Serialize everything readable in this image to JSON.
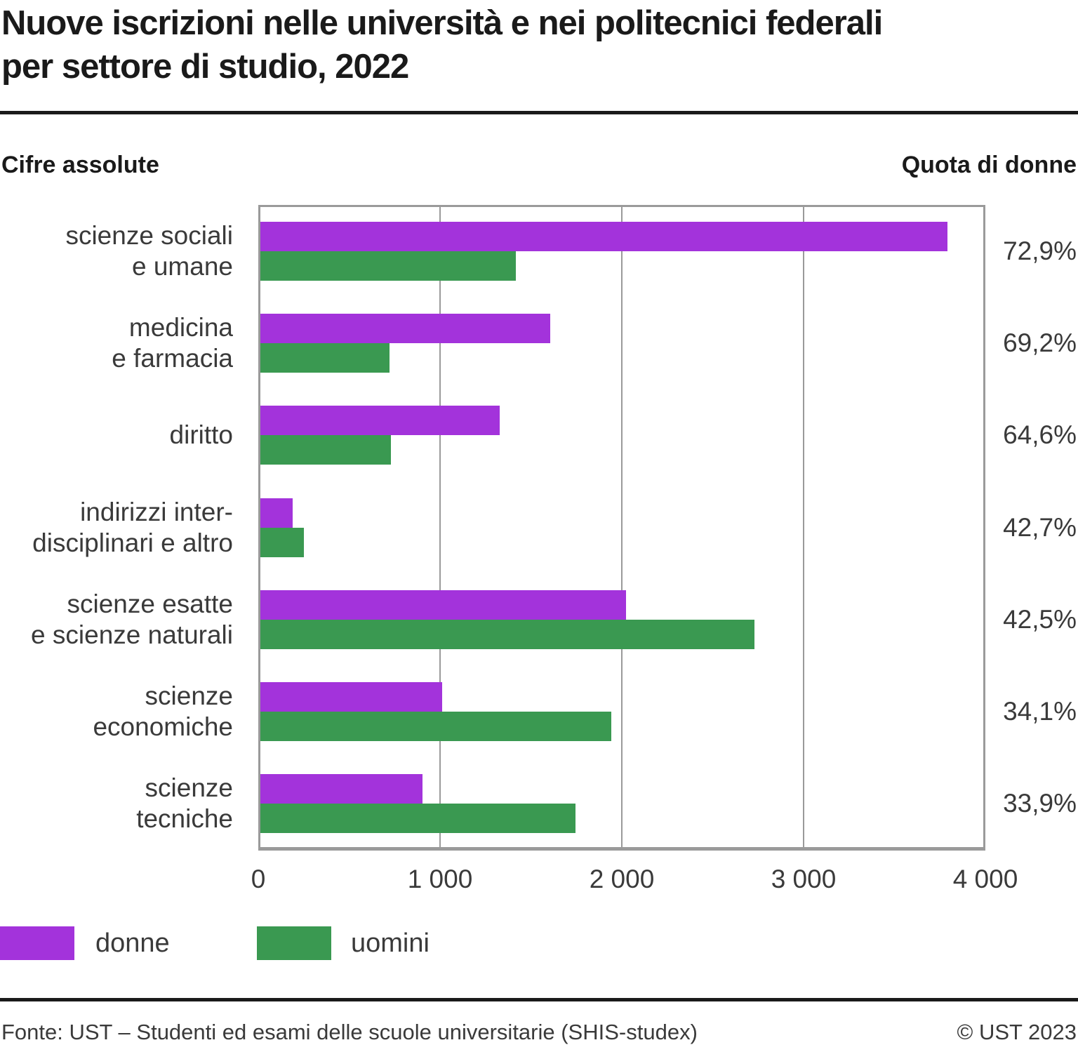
{
  "header": {
    "title_line1": "Nuove iscrizioni nelle università e nei politecnici federali",
    "title_line2": "per settore di studio, 2022",
    "left_subtitle": "Cifre assolute",
    "right_subtitle": "Quota di donne"
  },
  "chart_data": {
    "type": "bar",
    "orientation": "horizontal",
    "title": "Nuove iscrizioni nelle università e nei politecnici federali per settore di studio, 2022",
    "xlabel": "Cifre assolute",
    "xlim": [
      0,
      4000
    ],
    "grid": "vertical",
    "x_ticks": [
      {
        "value": 0,
        "label": "0"
      },
      {
        "value": 1000,
        "label": "1 000"
      },
      {
        "value": 2000,
        "label": "2 000"
      },
      {
        "value": 3000,
        "label": "3 000"
      },
      {
        "value": 4000,
        "label": "4 000"
      }
    ],
    "categories": [
      {
        "label_lines": [
          "scienze sociali",
          "e umane"
        ],
        "quota_di_donne": "72,9%"
      },
      {
        "label_lines": [
          "medicina",
          "e farmacia"
        ],
        "quota_di_donne": "69,2%"
      },
      {
        "label_lines": [
          "diritto"
        ],
        "quota_di_donne": "64,6%"
      },
      {
        "label_lines": [
          "indirizzi inter-",
          "disciplinari e altro"
        ],
        "quota_di_donne": "42,7%"
      },
      {
        "label_lines": [
          "scienze esatte",
          "e scienze naturali"
        ],
        "quota_di_donne": "42,5%"
      },
      {
        "label_lines": [
          "scienze",
          "economiche"
        ],
        "quota_di_donne": "34,1%"
      },
      {
        "label_lines": [
          "scienze",
          "tecniche"
        ],
        "quota_di_donne": "33,9%"
      }
    ],
    "series": [
      {
        "name": "donne",
        "color": "#a333db",
        "values": [
          3780,
          1595,
          1315,
          179,
          2010,
          1000,
          890
        ]
      },
      {
        "name": "uomini",
        "color": "#3a9951",
        "values": [
          1405,
          710,
          720,
          240,
          2720,
          1930,
          1735
        ]
      }
    ],
    "colors": {
      "gridline": "#9a9a9a",
      "frame": "#9a9a9a",
      "text": "#3a3a3a",
      "title": "#1a1a1a"
    }
  },
  "legend": {
    "items": [
      {
        "label": "donne",
        "color": "#a333db"
      },
      {
        "label": "uomini",
        "color": "#3a9951"
      }
    ]
  },
  "footer": {
    "source": "Fonte: UST – Studenti ed esami delle scuole universitarie (SHIS-studex)",
    "copyright": "© UST 2023"
  }
}
